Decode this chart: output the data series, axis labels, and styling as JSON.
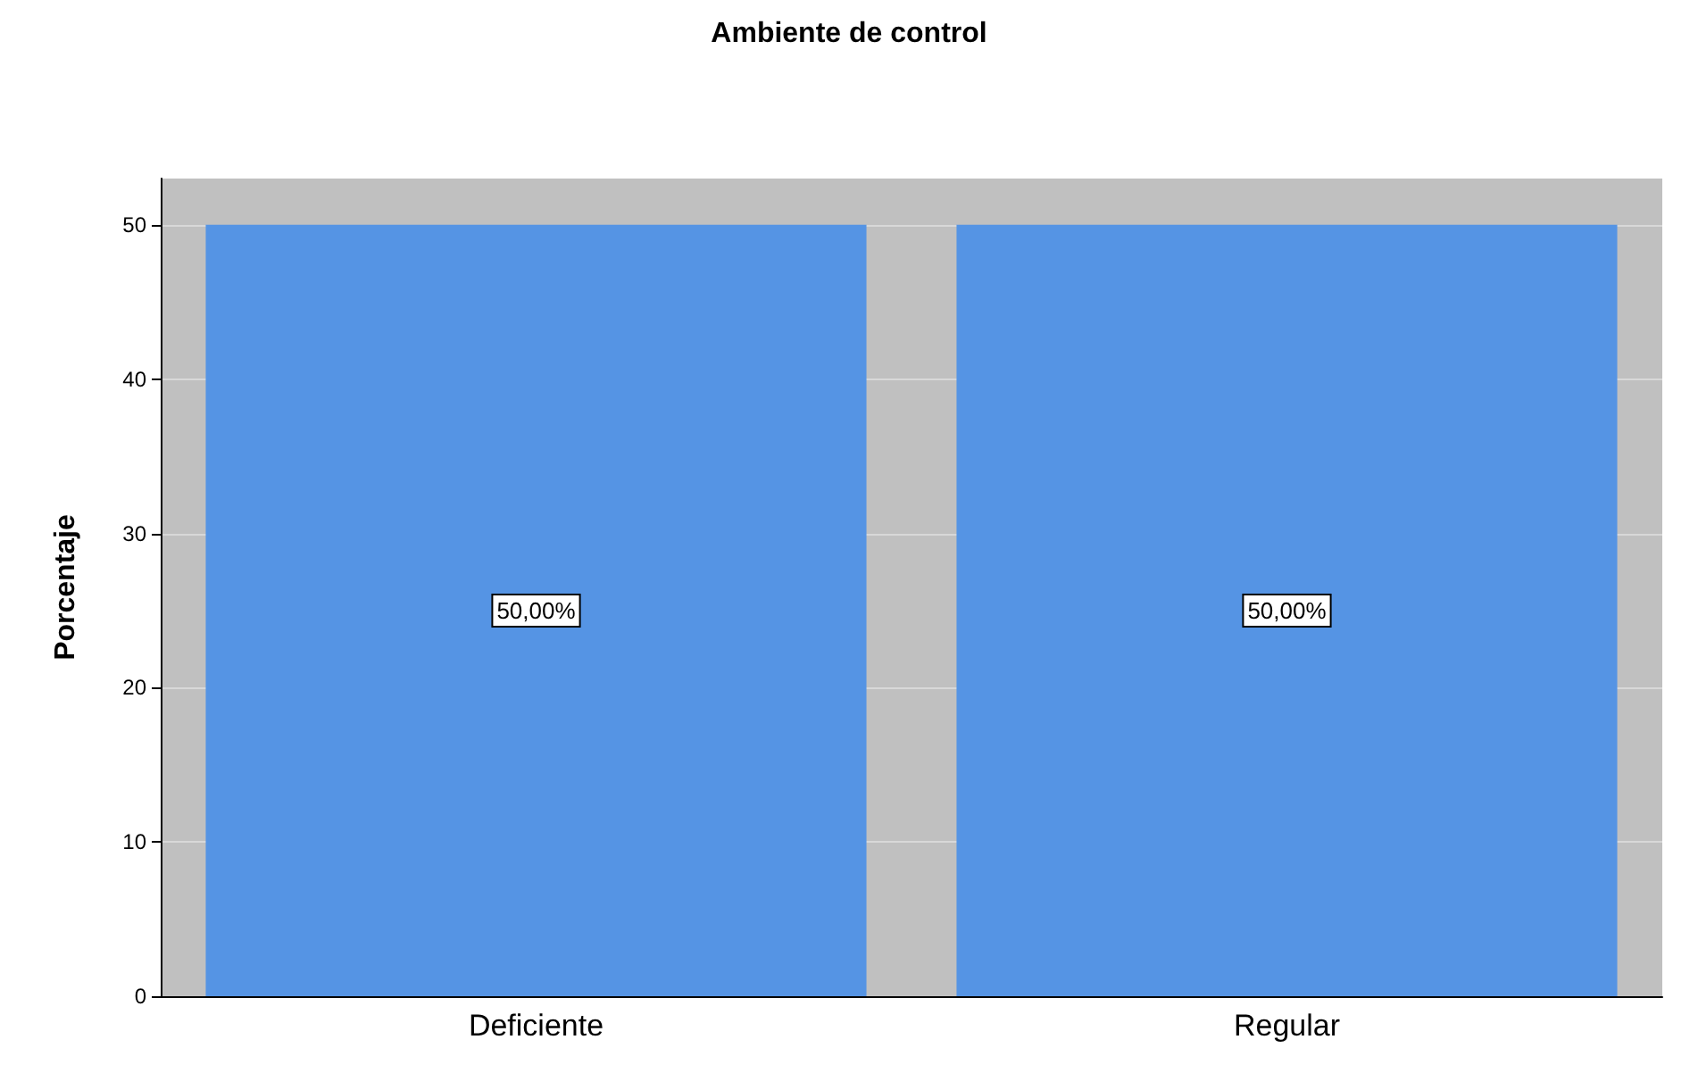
{
  "chart_data": {
    "type": "bar",
    "title": "Ambiente de control",
    "ylabel": "Porcentaje",
    "categories": [
      "Deficiente",
      "Regular"
    ],
    "values": [
      50,
      50
    ],
    "color": "#5594e4",
    "value_labels": [
      "50,00%",
      "50,00%"
    ],
    "ylim": [
      0,
      53
    ],
    "yticks": [
      0,
      10,
      20,
      30,
      40,
      50
    ],
    "grid": "y"
  }
}
